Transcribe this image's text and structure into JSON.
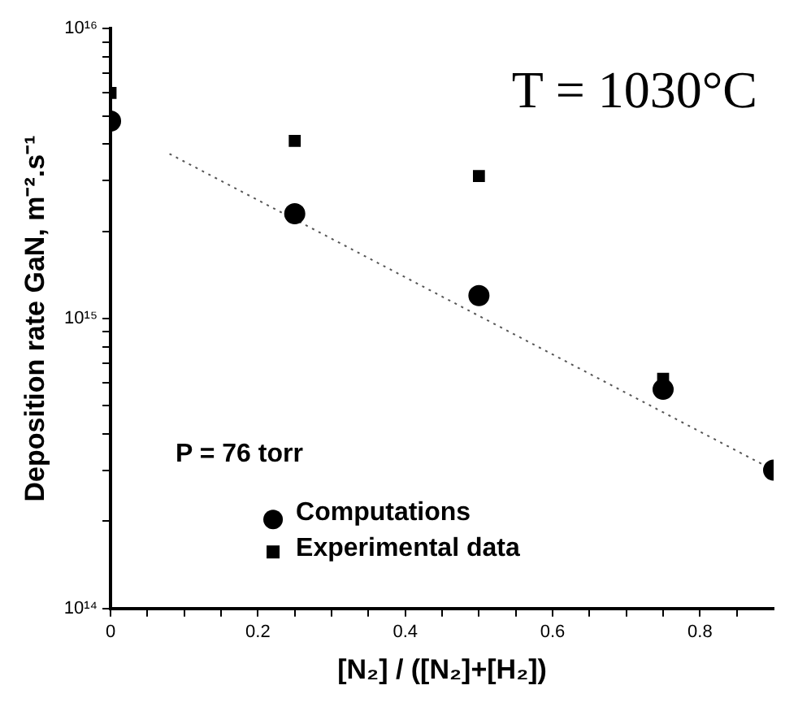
{
  "chart_data": {
    "type": "scatter",
    "xlabel": "[N₂] / ([N₂]+[H₂])",
    "ylabel": "Deposition rate GaN, m⁻².s⁻¹",
    "log": "y",
    "grid": false,
    "legend": "bottom left",
    "annotations": [
      "T = 1030°C",
      "P = 76 torr"
    ],
    "xlim": [
      0,
      0.9
    ],
    "xticks": [
      0,
      {
        "value": 0.05,
        "label": null
      },
      {
        "value": 0.1,
        "label": null
      },
      {
        "value": 0.15,
        "label": null
      },
      0.2,
      {
        "value": 0.25,
        "label": null
      },
      {
        "value": 0.3,
        "label": null
      },
      {
        "value": 0.35,
        "label": null
      },
      0.4,
      {
        "value": 0.45,
        "label": null
      },
      {
        "value": 0.5,
        "label": null
      },
      {
        "value": 0.55,
        "label": null
      },
      0.6,
      {
        "value": 0.65,
        "label": null
      },
      {
        "value": 0.7,
        "label": null
      },
      {
        "value": 0.75,
        "label": null
      },
      0.8,
      {
        "value": 0.85,
        "label": null
      }
    ],
    "ylim": [
      100000000000000.0,
      1e+16
    ],
    "yticks": [
      {
        "value": 100000000000000.0,
        "label": "10¹⁴"
      },
      {
        "value": 200000000000000.0,
        "label": null
      },
      {
        "value": 300000000000000.0,
        "label": null
      },
      {
        "value": 400000000000000.0,
        "label": null
      },
      {
        "value": 500000000000000.0,
        "label": null
      },
      {
        "value": 600000000000000.0,
        "label": null
      },
      {
        "value": 700000000000000.0,
        "label": null
      },
      {
        "value": 800000000000000.0,
        "label": null
      },
      {
        "value": 900000000000000.0,
        "label": null
      },
      {
        "value": 1000000000000000.0,
        "label": "10¹⁵"
      },
      {
        "value": 2000000000000000.0,
        "label": null
      },
      {
        "value": 3000000000000000.0,
        "label": null
      },
      {
        "value": 4000000000000000.0,
        "label": null
      },
      {
        "value": 5000000000000000.0,
        "label": null
      },
      {
        "value": 6000000000000000.0,
        "label": null
      },
      {
        "value": 7000000000000000.0,
        "label": null
      },
      {
        "value": 8000000000000000.0,
        "label": null
      },
      {
        "value": 9000000000000000.0,
        "label": null
      },
      {
        "value": 1e+16,
        "label": "10¹⁶"
      }
    ],
    "series": [
      {
        "name": "Computations",
        "color": "#000000",
        "marker": "circle",
        "x": [
          0,
          0.25,
          0.5,
          0.75,
          0.9
        ],
        "values": [
          4800000000000000.0,
          2300000000000000.0,
          1200000000000000.0,
          570000000000000.0,
          300000000000000.0
        ]
      },
      {
        "name": "Experimental data",
        "color": "#000000",
        "marker": "square",
        "x": [
          0,
          0.25,
          0.5,
          0.75
        ],
        "values": [
          6000000000000000.0,
          4100000000000000.0,
          3100000000000000.0,
          620000000000000.0
        ]
      },
      {
        "type": "line",
        "color": "#555555",
        "marker": "none",
        "line_style": "dotted",
        "x": [
          0.08,
          0.9
        ],
        "values": [
          3700000000000000.0,
          300000000000000.0
        ]
      }
    ]
  }
}
